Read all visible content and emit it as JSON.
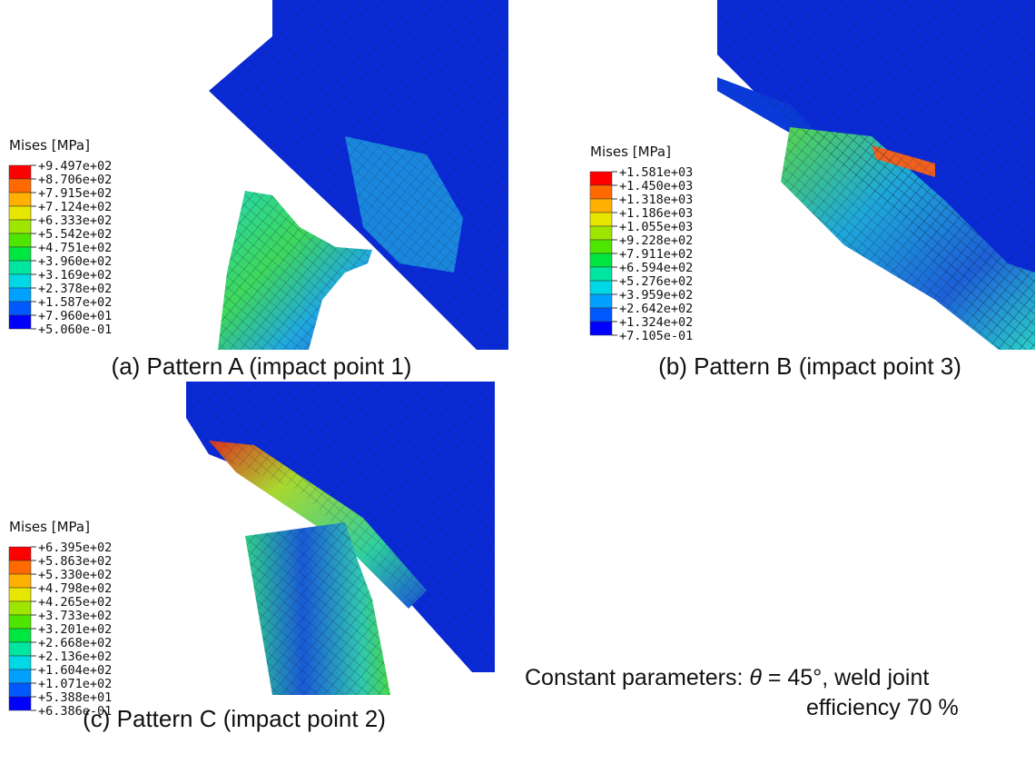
{
  "panels": [
    {
      "caption": "(a) Pattern A (impact point 1)",
      "legend": {
        "title": "Mises [MPa]",
        "values": [
          "+9.497e+02",
          "+8.706e+02",
          "+7.915e+02",
          "+7.124e+02",
          "+6.333e+02",
          "+5.542e+02",
          "+4.751e+02",
          "+3.960e+02",
          "+3.169e+02",
          "+2.378e+02",
          "+1.587e+02",
          "+7.960e+01",
          "+5.060e-01"
        ]
      }
    },
    {
      "caption": "(b) Pattern B (impact point 3)",
      "legend": {
        "title": "Mises [MPa]",
        "values": [
          "+1.581e+03",
          "+1.450e+03",
          "+1.318e+03",
          "+1.186e+03",
          "+1.055e+03",
          "+9.228e+02",
          "+7.911e+02",
          "+6.594e+02",
          "+5.276e+02",
          "+3.959e+02",
          "+2.642e+02",
          "+1.324e+02",
          "+7.105e-01"
        ]
      }
    },
    {
      "caption": "(c) Pattern C (impact point 2)",
      "legend": {
        "title": "Mises [MPa]",
        "values": [
          "+6.395e+02",
          "+5.863e+02",
          "+5.330e+02",
          "+4.798e+02",
          "+4.265e+02",
          "+3.733e+02",
          "+3.201e+02",
          "+2.668e+02",
          "+2.136e+02",
          "+1.604e+02",
          "+1.071e+02",
          "+5.388e+01",
          "+6.386e-01"
        ]
      }
    }
  ],
  "note": {
    "prefix": "Constant parameters: ",
    "symbol": "θ",
    "line1_rest": " = 45°, weld joint",
    "line2": "efficiency 70 %"
  }
}
